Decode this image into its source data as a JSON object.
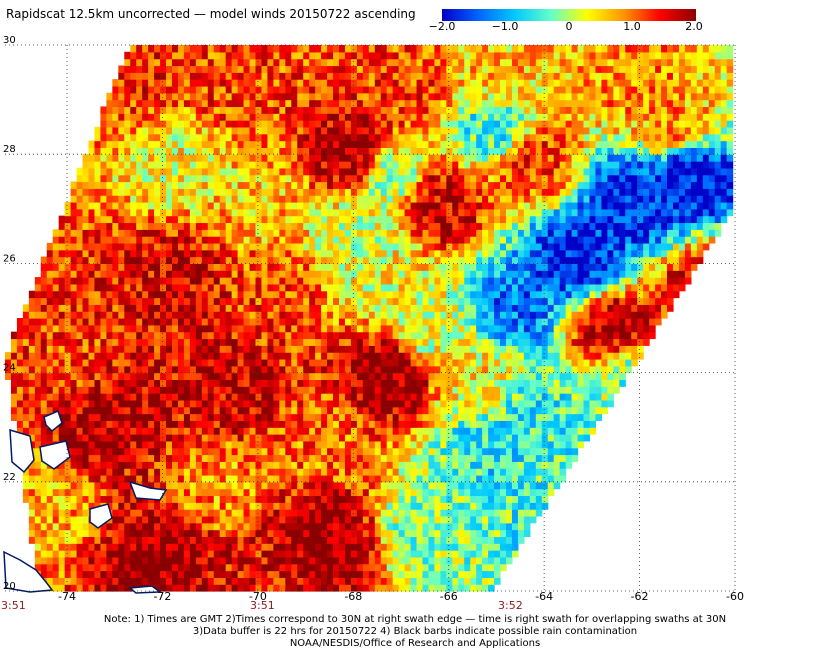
{
  "title": "Rapidscat 12.5km uncorrected — model winds 20150722 ascending",
  "colorbar": {
    "ticks": [
      "−2.0",
      "−1.0",
      "0",
      "1.0",
      "2.0"
    ],
    "range": [
      -2.0,
      2.0
    ],
    "colors": [
      "#0000c8",
      "#0064ff",
      "#00c8ff",
      "#64ffc8",
      "#ffff00",
      "#ff9600",
      "#ff0000",
      "#8b0000"
    ]
  },
  "time_labels": [
    "3:51",
    "3:51",
    "3:52"
  ],
  "notes": [
    "Note: 1) Times are GMT 2)Times correspond to 30N at right swath edge — time is right swath for overlapping swaths at 30N",
    "3)Data buffer is 22 hrs for 20150722 4) Black barbs indicate possible rain contamination",
    "NOAA/NESDIS/Office of Research and Applications"
  ],
  "chart_data": {
    "type": "heatmap",
    "title": "Rapidscat 12.5km uncorrected — model winds 20150722 ascending",
    "xlabel": "",
    "ylabel": "",
    "x_ticks": [
      "-74",
      "-72",
      "-70",
      "-68",
      "-66",
      "-64",
      "-62",
      "-60"
    ],
    "y_ticks": [
      "20",
      "22",
      "24",
      "26",
      "28",
      "30"
    ],
    "xlim": [
      -75.3,
      -60
    ],
    "ylim": [
      20,
      30
    ],
    "value_range": [
      -2.0,
      2.0
    ],
    "grid": true,
    "swath": [
      [
        -74.6,
        20
      ],
      [
        -75.3,
        24.3
      ],
      [
        -72.7,
        30
      ],
      [
        -60.1,
        30
      ],
      [
        -60.1,
        26.9
      ],
      [
        -65.1,
        20
      ]
    ],
    "regions": [
      {
        "lon": -65.2,
        "lat": 22.6,
        "value": -0.6
      },
      {
        "lon": -64.2,
        "lat": 23.3,
        "value": -0.5
      },
      {
        "lon": -62.3,
        "lat": 23.8,
        "value": -0.2
      },
      {
        "lon": -63.5,
        "lat": 21.2,
        "value": -0.5
      },
      {
        "lon": -66.4,
        "lat": 21.2,
        "value": -0.2
      },
      {
        "lon": -63.3,
        "lat": 26.1,
        "value": -1.8
      },
      {
        "lon": -62.2,
        "lat": 27.2,
        "value": -1.8
      },
      {
        "lon": -61.0,
        "lat": 27.6,
        "value": -1.9
      },
      {
        "lon": -64.6,
        "lat": 25.2,
        "value": -1.3
      },
      {
        "lon": -65.1,
        "lat": 28.5,
        "value": -0.5
      },
      {
        "lon": -67.2,
        "lat": 27.6,
        "value": -0.1
      },
      {
        "lon": -68.0,
        "lat": 28.0,
        "value": 1.9
      },
      {
        "lon": -66.2,
        "lat": 27.1,
        "value": 1.7
      },
      {
        "lon": -65.0,
        "lat": 29.4,
        "value": 0.6
      },
      {
        "lon": -62.0,
        "lat": 29.2,
        "value": 0.9
      },
      {
        "lon": -60.6,
        "lat": 25.5,
        "value": 1.6
      },
      {
        "lon": -62.6,
        "lat": 24.8,
        "value": 1.7
      },
      {
        "lon": -67.2,
        "lat": 24.0,
        "value": 2.0
      },
      {
        "lon": -68.7,
        "lat": 22.7,
        "value": 1.0
      },
      {
        "lon": -68.6,
        "lat": 21.0,
        "value": 2.0
      },
      {
        "lon": -70.2,
        "lat": 20.3,
        "value": 1.5
      },
      {
        "lon": -72.0,
        "lat": 20.5,
        "value": 2.0
      },
      {
        "lon": -73.1,
        "lat": 23.2,
        "value": 1.8
      },
      {
        "lon": -70.6,
        "lat": 23.7,
        "value": 1.7
      },
      {
        "lon": -71.7,
        "lat": 25.8,
        "value": 1.6
      },
      {
        "lon": -69.6,
        "lat": 25.5,
        "value": 1.2
      },
      {
        "lon": -69.8,
        "lat": 27.0,
        "value": 0.6
      },
      {
        "lon": -71.6,
        "lat": 27.8,
        "value": 0.3
      },
      {
        "lon": -70.6,
        "lat": 29.3,
        "value": 1.2
      },
      {
        "lon": -72.6,
        "lat": 29.6,
        "value": 1.3
      },
      {
        "lon": -73.9,
        "lat": 24.2,
        "value": 1.2
      },
      {
        "lon": -74.6,
        "lat": 21.5,
        "value": 0.7
      },
      {
        "lon": -70.8,
        "lat": 21.9,
        "value": 0.8
      },
      {
        "lon": -67.4,
        "lat": 25.8,
        "value": 0.3
      },
      {
        "lon": -68.0,
        "lat": 26.5,
        "value": 0.1
      },
      {
        "lon": -66.4,
        "lat": 24.7,
        "value": 0.2
      },
      {
        "lon": -65.4,
        "lat": 23.9,
        "value": 0.4
      },
      {
        "lon": -61.3,
        "lat": 28.5,
        "value": 0.8
      },
      {
        "lon": -64.2,
        "lat": 27.9,
        "value": 1.2
      },
      {
        "lon": -66.8,
        "lat": 29.1,
        "value": 1.2
      }
    ]
  }
}
